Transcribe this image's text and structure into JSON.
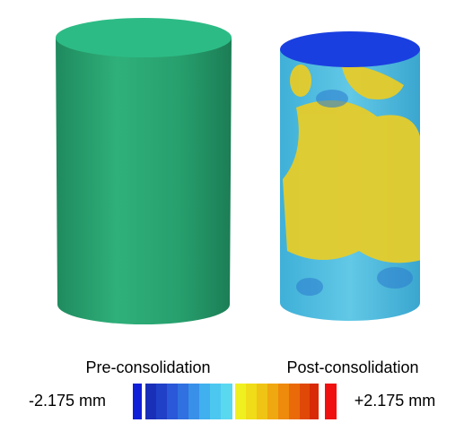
{
  "panels": [
    {
      "label": "Pre-consolidation"
    },
    {
      "label": "Post-consolidation"
    }
  ],
  "colorbar": {
    "min_label": "-2.175 mm",
    "max_label": "+2.175 mm"
  }
}
